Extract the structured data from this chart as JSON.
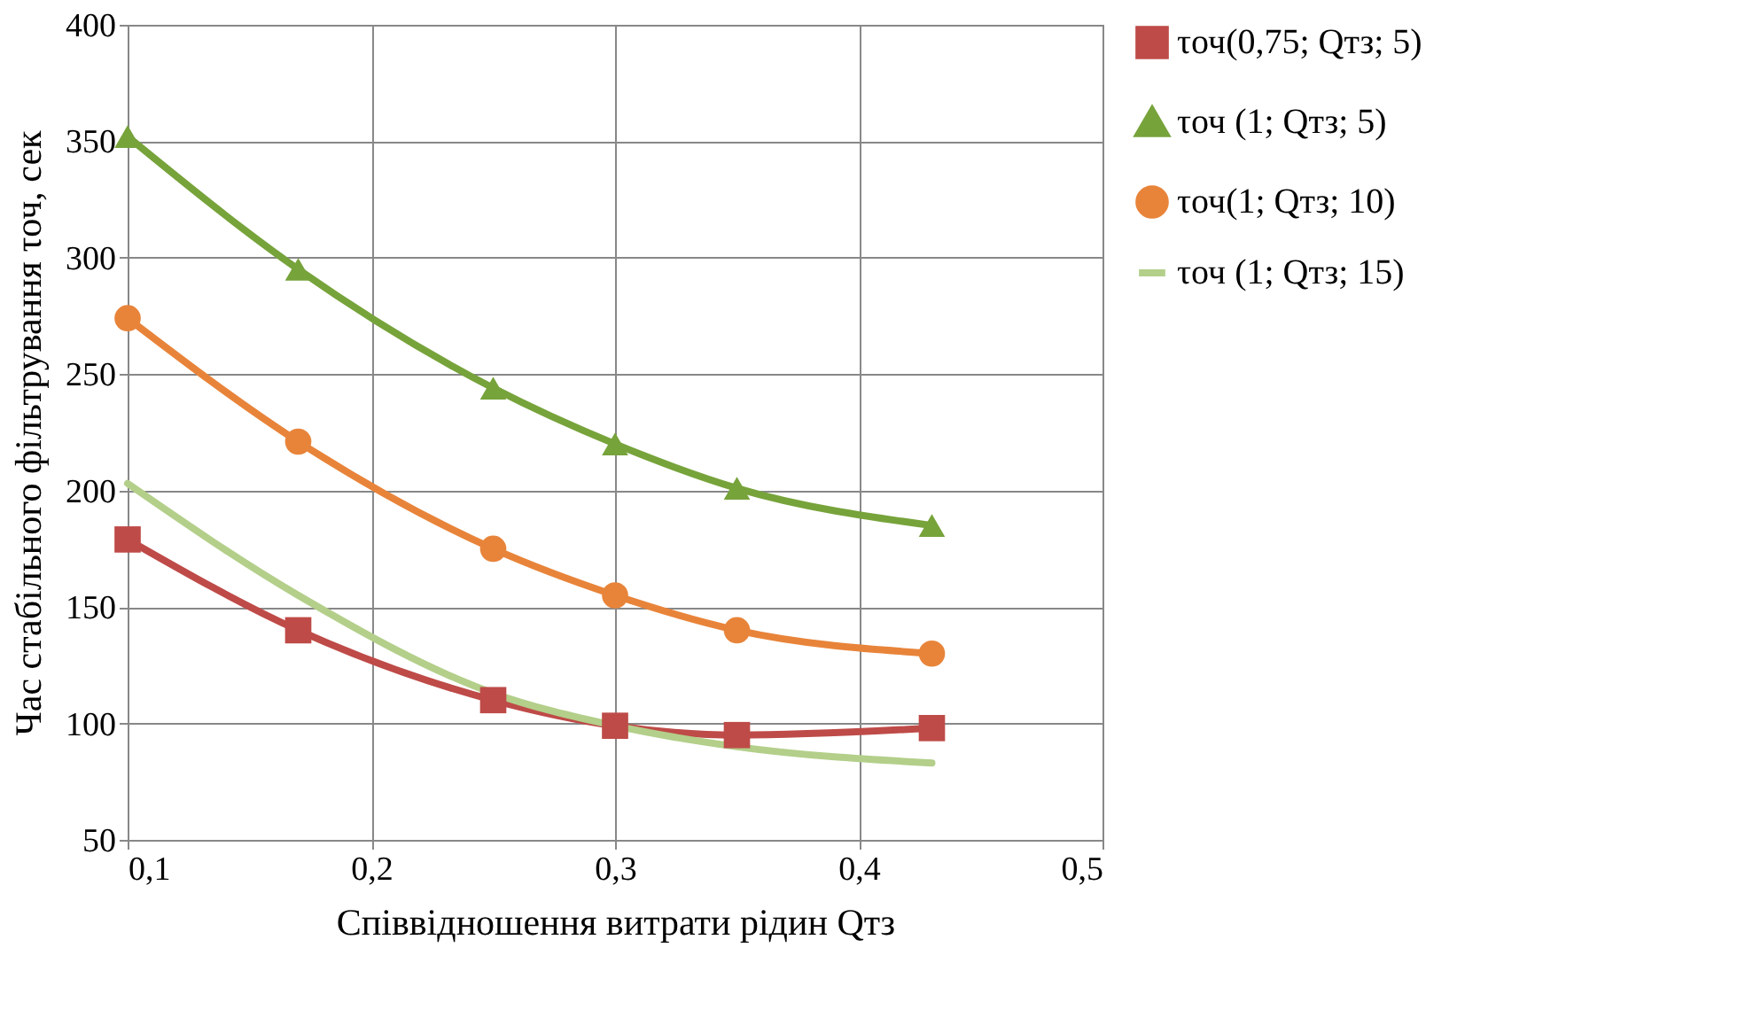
{
  "chart_data": {
    "type": "line",
    "xlabel": "Співвідношення витрати рідин Qтз",
    "ylabel": "Час стабільного фільтрування τоч, сек",
    "x": [
      0.1,
      0.17,
      0.25,
      0.3,
      0.35,
      0.43
    ],
    "xlim": [
      0.1,
      0.5
    ],
    "xticks": [
      {
        "value": 0.1,
        "label": "0,1"
      },
      {
        "value": 0.2,
        "label": "0,2"
      },
      {
        "value": 0.3,
        "label": "0,3"
      },
      {
        "value": 0.4,
        "label": "0,4"
      },
      {
        "value": 0.5,
        "label": "0,5"
      }
    ],
    "ylim": [
      50,
      400
    ],
    "yticks": [
      50,
      100,
      150,
      200,
      250,
      300,
      350,
      400
    ],
    "grid": true,
    "legend": "right",
    "series": [
      {
        "name": "τоч(0,75; Qтз; 5)",
        "color": "#be4b48",
        "marker": "square",
        "values": [
          179,
          140,
          110,
          99,
          95,
          98
        ]
      },
      {
        "name": "τоч (1; Qтз; 5)",
        "color": "#77a33b",
        "marker": "triangle",
        "values": [
          352,
          295,
          244,
          220,
          201,
          185
        ]
      },
      {
        "name": "τоч(1; Qтз; 10)",
        "color": "#e8843a",
        "marker": "circle",
        "values": [
          274,
          221,
          175,
          155,
          140,
          130
        ]
      },
      {
        "name": "τоч (1; Qтз; 15)",
        "color": "#b3cf8a",
        "marker": "none",
        "values": [
          203,
          155,
          113,
          99,
          90,
          83
        ]
      }
    ]
  }
}
